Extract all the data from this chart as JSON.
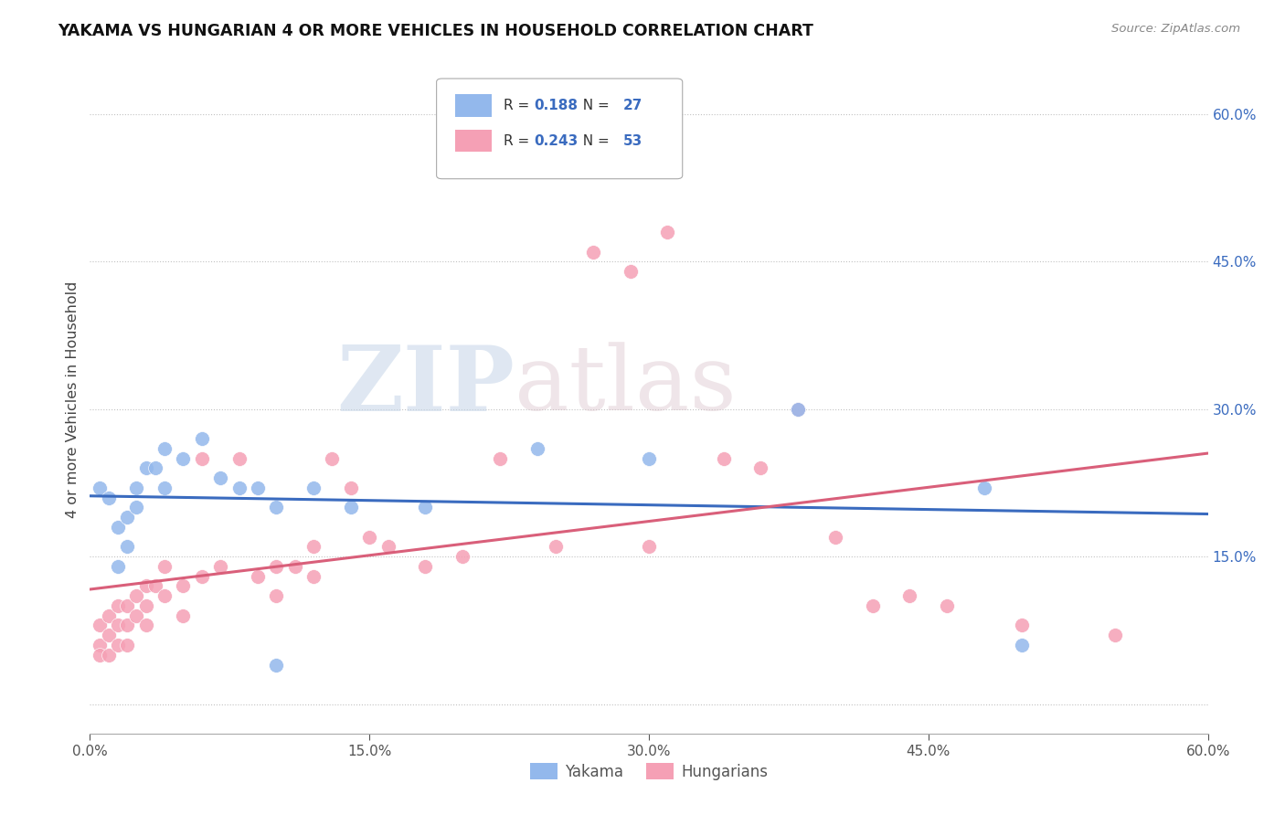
{
  "title": "YAKAMA VS HUNGARIAN 4 OR MORE VEHICLES IN HOUSEHOLD CORRELATION CHART",
  "source": "Source: ZipAtlas.com",
  "ylabel": "4 or more Vehicles in Household",
  "xlim": [
    0.0,
    0.6
  ],
  "ylim": [
    -0.03,
    0.65
  ],
  "yticks": [
    0.0,
    0.15,
    0.3,
    0.45,
    0.6
  ],
  "xticks": [
    0.0,
    0.15,
    0.3,
    0.45,
    0.6
  ],
  "yakama_color": "#93b8ec",
  "hungarian_color": "#f5a0b5",
  "trend_yakama_color": "#3a6bbf",
  "trend_hungarian_color": "#d95f7a",
  "r_yakama": 0.188,
  "n_yakama": 27,
  "r_hungarian": 0.243,
  "n_hungarian": 53,
  "watermark_zip": "ZIP",
  "watermark_atlas": "atlas",
  "yakama_points": [
    [
      0.005,
      0.22
    ],
    [
      0.01,
      0.21
    ],
    [
      0.015,
      0.18
    ],
    [
      0.015,
      0.14
    ],
    [
      0.02,
      0.19
    ],
    [
      0.02,
      0.16
    ],
    [
      0.025,
      0.22
    ],
    [
      0.025,
      0.2
    ],
    [
      0.03,
      0.24
    ],
    [
      0.035,
      0.24
    ],
    [
      0.04,
      0.26
    ],
    [
      0.04,
      0.22
    ],
    [
      0.05,
      0.25
    ],
    [
      0.06,
      0.27
    ],
    [
      0.07,
      0.23
    ],
    [
      0.08,
      0.22
    ],
    [
      0.09,
      0.22
    ],
    [
      0.1,
      0.2
    ],
    [
      0.12,
      0.22
    ],
    [
      0.14,
      0.2
    ],
    [
      0.18,
      0.2
    ],
    [
      0.24,
      0.26
    ],
    [
      0.3,
      0.25
    ],
    [
      0.38,
      0.3
    ],
    [
      0.48,
      0.22
    ],
    [
      0.5,
      0.06
    ],
    [
      0.1,
      0.04
    ]
  ],
  "hungarian_points": [
    [
      0.005,
      0.08
    ],
    [
      0.005,
      0.06
    ],
    [
      0.005,
      0.05
    ],
    [
      0.01,
      0.09
    ],
    [
      0.01,
      0.07
    ],
    [
      0.01,
      0.05
    ],
    [
      0.015,
      0.1
    ],
    [
      0.015,
      0.08
    ],
    [
      0.015,
      0.06
    ],
    [
      0.02,
      0.1
    ],
    [
      0.02,
      0.08
    ],
    [
      0.02,
      0.06
    ],
    [
      0.025,
      0.11
    ],
    [
      0.025,
      0.09
    ],
    [
      0.03,
      0.12
    ],
    [
      0.03,
      0.1
    ],
    [
      0.03,
      0.08
    ],
    [
      0.035,
      0.12
    ],
    [
      0.04,
      0.14
    ],
    [
      0.04,
      0.11
    ],
    [
      0.05,
      0.12
    ],
    [
      0.05,
      0.09
    ],
    [
      0.06,
      0.25
    ],
    [
      0.06,
      0.13
    ],
    [
      0.07,
      0.14
    ],
    [
      0.08,
      0.25
    ],
    [
      0.09,
      0.13
    ],
    [
      0.1,
      0.14
    ],
    [
      0.1,
      0.11
    ],
    [
      0.11,
      0.14
    ],
    [
      0.12,
      0.16
    ],
    [
      0.12,
      0.13
    ],
    [
      0.13,
      0.25
    ],
    [
      0.14,
      0.22
    ],
    [
      0.15,
      0.17
    ],
    [
      0.16,
      0.16
    ],
    [
      0.18,
      0.14
    ],
    [
      0.2,
      0.15
    ],
    [
      0.22,
      0.25
    ],
    [
      0.25,
      0.16
    ],
    [
      0.27,
      0.46
    ],
    [
      0.29,
      0.44
    ],
    [
      0.31,
      0.48
    ],
    [
      0.3,
      0.16
    ],
    [
      0.34,
      0.25
    ],
    [
      0.36,
      0.24
    ],
    [
      0.38,
      0.3
    ],
    [
      0.4,
      0.17
    ],
    [
      0.42,
      0.1
    ],
    [
      0.44,
      0.11
    ],
    [
      0.46,
      0.1
    ],
    [
      0.5,
      0.08
    ],
    [
      0.55,
      0.07
    ]
  ]
}
